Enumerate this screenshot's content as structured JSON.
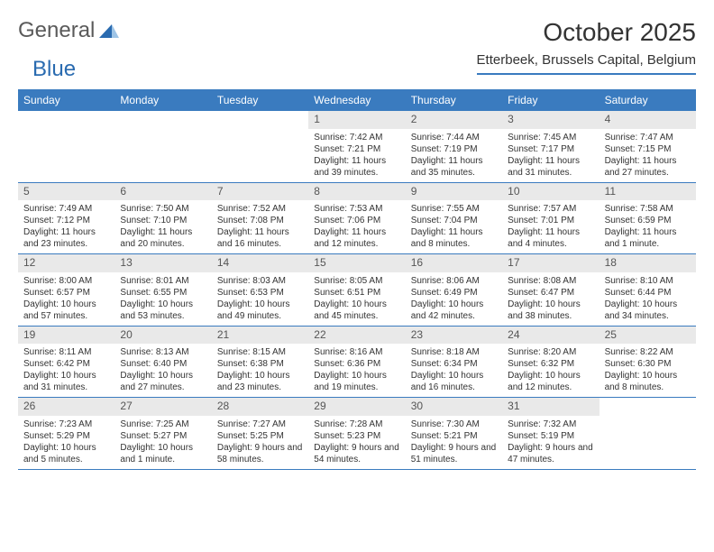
{
  "brand": {
    "part1": "General",
    "part2": "Blue"
  },
  "header": {
    "month_title": "October 2025",
    "location": "Etterbeek, Brussels Capital, Belgium"
  },
  "colors": {
    "accent": "#3a7bbf",
    "daynum_bg": "#e9e9e9",
    "text": "#333333",
    "header_text": "#ffffff"
  },
  "weekdays": [
    "Sunday",
    "Monday",
    "Tuesday",
    "Wednesday",
    "Thursday",
    "Friday",
    "Saturday"
  ],
  "weeks": [
    [
      {
        "empty": true
      },
      {
        "empty": true
      },
      {
        "empty": true
      },
      {
        "n": "1",
        "sunrise": "Sunrise: 7:42 AM",
        "sunset": "Sunset: 7:21 PM",
        "daylight": "Daylight: 11 hours and 39 minutes."
      },
      {
        "n": "2",
        "sunrise": "Sunrise: 7:44 AM",
        "sunset": "Sunset: 7:19 PM",
        "daylight": "Daylight: 11 hours and 35 minutes."
      },
      {
        "n": "3",
        "sunrise": "Sunrise: 7:45 AM",
        "sunset": "Sunset: 7:17 PM",
        "daylight": "Daylight: 11 hours and 31 minutes."
      },
      {
        "n": "4",
        "sunrise": "Sunrise: 7:47 AM",
        "sunset": "Sunset: 7:15 PM",
        "daylight": "Daylight: 11 hours and 27 minutes."
      }
    ],
    [
      {
        "n": "5",
        "sunrise": "Sunrise: 7:49 AM",
        "sunset": "Sunset: 7:12 PM",
        "daylight": "Daylight: 11 hours and 23 minutes."
      },
      {
        "n": "6",
        "sunrise": "Sunrise: 7:50 AM",
        "sunset": "Sunset: 7:10 PM",
        "daylight": "Daylight: 11 hours and 20 minutes."
      },
      {
        "n": "7",
        "sunrise": "Sunrise: 7:52 AM",
        "sunset": "Sunset: 7:08 PM",
        "daylight": "Daylight: 11 hours and 16 minutes."
      },
      {
        "n": "8",
        "sunrise": "Sunrise: 7:53 AM",
        "sunset": "Sunset: 7:06 PM",
        "daylight": "Daylight: 11 hours and 12 minutes."
      },
      {
        "n": "9",
        "sunrise": "Sunrise: 7:55 AM",
        "sunset": "Sunset: 7:04 PM",
        "daylight": "Daylight: 11 hours and 8 minutes."
      },
      {
        "n": "10",
        "sunrise": "Sunrise: 7:57 AM",
        "sunset": "Sunset: 7:01 PM",
        "daylight": "Daylight: 11 hours and 4 minutes."
      },
      {
        "n": "11",
        "sunrise": "Sunrise: 7:58 AM",
        "sunset": "Sunset: 6:59 PM",
        "daylight": "Daylight: 11 hours and 1 minute."
      }
    ],
    [
      {
        "n": "12",
        "sunrise": "Sunrise: 8:00 AM",
        "sunset": "Sunset: 6:57 PM",
        "daylight": "Daylight: 10 hours and 57 minutes."
      },
      {
        "n": "13",
        "sunrise": "Sunrise: 8:01 AM",
        "sunset": "Sunset: 6:55 PM",
        "daylight": "Daylight: 10 hours and 53 minutes."
      },
      {
        "n": "14",
        "sunrise": "Sunrise: 8:03 AM",
        "sunset": "Sunset: 6:53 PM",
        "daylight": "Daylight: 10 hours and 49 minutes."
      },
      {
        "n": "15",
        "sunrise": "Sunrise: 8:05 AM",
        "sunset": "Sunset: 6:51 PM",
        "daylight": "Daylight: 10 hours and 45 minutes."
      },
      {
        "n": "16",
        "sunrise": "Sunrise: 8:06 AM",
        "sunset": "Sunset: 6:49 PM",
        "daylight": "Daylight: 10 hours and 42 minutes."
      },
      {
        "n": "17",
        "sunrise": "Sunrise: 8:08 AM",
        "sunset": "Sunset: 6:47 PM",
        "daylight": "Daylight: 10 hours and 38 minutes."
      },
      {
        "n": "18",
        "sunrise": "Sunrise: 8:10 AM",
        "sunset": "Sunset: 6:44 PM",
        "daylight": "Daylight: 10 hours and 34 minutes."
      }
    ],
    [
      {
        "n": "19",
        "sunrise": "Sunrise: 8:11 AM",
        "sunset": "Sunset: 6:42 PM",
        "daylight": "Daylight: 10 hours and 31 minutes."
      },
      {
        "n": "20",
        "sunrise": "Sunrise: 8:13 AM",
        "sunset": "Sunset: 6:40 PM",
        "daylight": "Daylight: 10 hours and 27 minutes."
      },
      {
        "n": "21",
        "sunrise": "Sunrise: 8:15 AM",
        "sunset": "Sunset: 6:38 PM",
        "daylight": "Daylight: 10 hours and 23 minutes."
      },
      {
        "n": "22",
        "sunrise": "Sunrise: 8:16 AM",
        "sunset": "Sunset: 6:36 PM",
        "daylight": "Daylight: 10 hours and 19 minutes."
      },
      {
        "n": "23",
        "sunrise": "Sunrise: 8:18 AM",
        "sunset": "Sunset: 6:34 PM",
        "daylight": "Daylight: 10 hours and 16 minutes."
      },
      {
        "n": "24",
        "sunrise": "Sunrise: 8:20 AM",
        "sunset": "Sunset: 6:32 PM",
        "daylight": "Daylight: 10 hours and 12 minutes."
      },
      {
        "n": "25",
        "sunrise": "Sunrise: 8:22 AM",
        "sunset": "Sunset: 6:30 PM",
        "daylight": "Daylight: 10 hours and 8 minutes."
      }
    ],
    [
      {
        "n": "26",
        "sunrise": "Sunrise: 7:23 AM",
        "sunset": "Sunset: 5:29 PM",
        "daylight": "Daylight: 10 hours and 5 minutes."
      },
      {
        "n": "27",
        "sunrise": "Sunrise: 7:25 AM",
        "sunset": "Sunset: 5:27 PM",
        "daylight": "Daylight: 10 hours and 1 minute."
      },
      {
        "n": "28",
        "sunrise": "Sunrise: 7:27 AM",
        "sunset": "Sunset: 5:25 PM",
        "daylight": "Daylight: 9 hours and 58 minutes."
      },
      {
        "n": "29",
        "sunrise": "Sunrise: 7:28 AM",
        "sunset": "Sunset: 5:23 PM",
        "daylight": "Daylight: 9 hours and 54 minutes."
      },
      {
        "n": "30",
        "sunrise": "Sunrise: 7:30 AM",
        "sunset": "Sunset: 5:21 PM",
        "daylight": "Daylight: 9 hours and 51 minutes."
      },
      {
        "n": "31",
        "sunrise": "Sunrise: 7:32 AM",
        "sunset": "Sunset: 5:19 PM",
        "daylight": "Daylight: 9 hours and 47 minutes."
      },
      {
        "empty": true
      }
    ]
  ]
}
